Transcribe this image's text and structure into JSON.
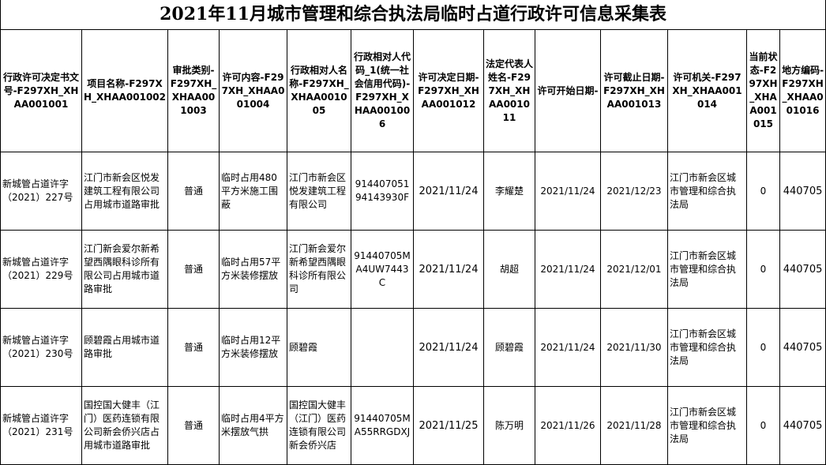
{
  "title": "2021年11月城市管理和综合执法局临时占道行政许可信息采集表",
  "table": {
    "headers": [
      "行政许可决定书文号-F297XH_XHAA001001",
      "项目名称-F297XH_XHAA001002",
      "审批类别-F297XH_XHAA001003",
      "许可内容-F297XH_XHAA001004",
      "行政相对人名称-F297XH_XHAA001005",
      "行政相对人代码_1(统一社会信用代码)-F297XH_XHAA001006",
      "许可决定日期-F297XH_XHAA001012",
      "法定代表人姓名-F297XH_XHAA001011",
      "许可开始日期-",
      "许可截止日期-F297XH_XHAA001013",
      "许可机关-F297XH_XHAA001014",
      "当前状态-F297XH_XHAA001015",
      "地方编码-F297XH_XHAA001016"
    ],
    "rows": [
      [
        "新城管占道许字（2021）227号",
        "江门市新会区悦发建筑工程有限公司占用城市道路审批",
        "普通",
        "临时占用480平方米施工围蔽",
        "江门市新会区悦发建筑工程有限公司",
        "91440705194143930F",
        "2021/11/24",
        "李耀楚",
        "2021/11/24",
        "2021/12/23",
        "江门市新会区城市管理和综合执法局",
        0,
        440705
      ],
      [
        "新城管占道许字（2021）229号",
        "江门新会爱尔新希望西隅眼科诊所有限公司占用城市道路审批",
        "普通",
        "临时占用57平方米装修摆放",
        "江门新会爱尔新希望西隅眼科诊所有限公司",
        "91440705MA4UW7443C",
        "2021/11/24",
        "胡超",
        "2021/11/24",
        "2021/12/01",
        "江门市新会区城市管理和综合执法局",
        0,
        440705
      ],
      [
        "新城管占道许字（2021）230号",
        "顾碧霞占用城市道路审批",
        "普通",
        "临时占用12平方米装修摆放",
        "顾碧霞",
        null,
        "2021/11/24",
        "顾碧霞",
        "2021/11/24",
        "2021/11/30",
        "江门市新会区城市管理和综合执法局",
        0,
        440705
      ],
      [
        "新城管占道许字（2021）231号",
        "国控国大健丰（江门）医药连锁有限公司新会侨兴店占用城市道路审批",
        "普通",
        "临时占用4平方米摆放气拱",
        "国控国大健丰（江门）医药连锁有限公司新会侨兴店",
        "91440705MA55RRGDXJ",
        "2021/11/25",
        "陈万明",
        "2021/11/26",
        "2021/11/28",
        "江门市新会区城市管理和综合执法局",
        0,
        440705
      ]
    ]
  }
}
